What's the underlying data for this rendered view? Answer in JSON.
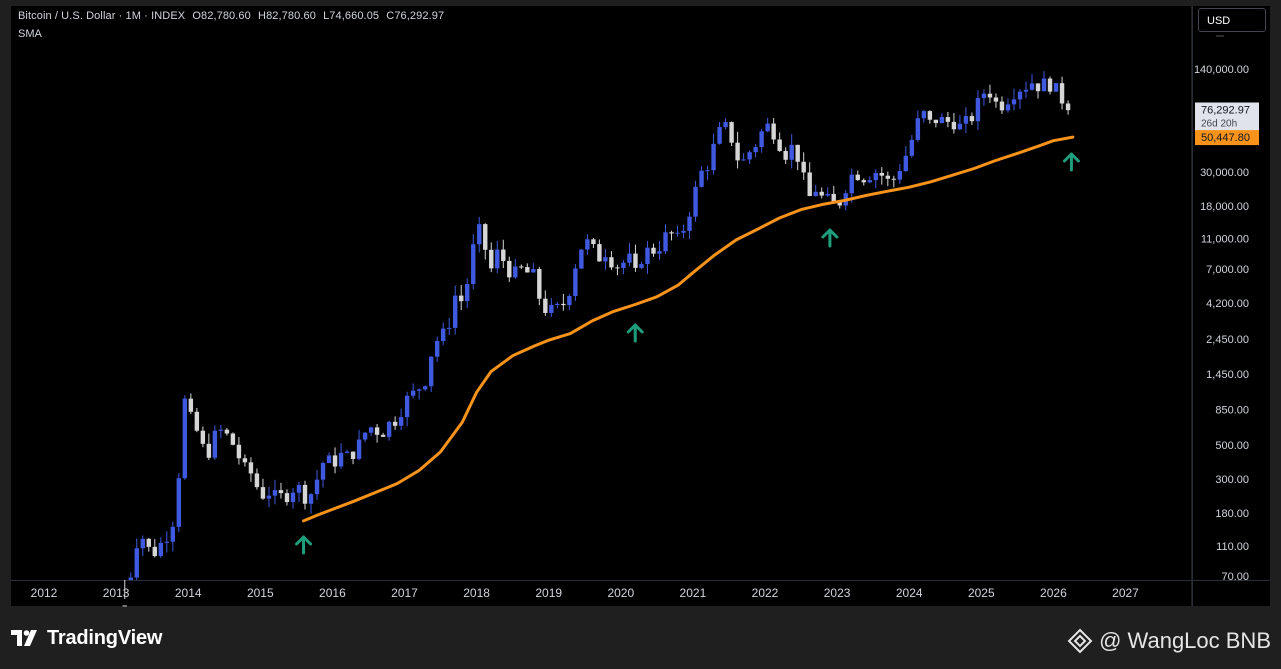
{
  "header": {
    "symbol": "Bitcoin / U.S. Dollar · 1M · INDEX",
    "open_key": "O",
    "open": "82,780.60",
    "high_key": "H",
    "high": "82,780.60",
    "low_key": "L",
    "low": "74,660.05",
    "close_key": "C",
    "close": "76,292.97",
    "indicator": "SMA"
  },
  "currency_button": "USD",
  "footer": {
    "brand": "TradingView",
    "watermark": "@ WangLoc BNB"
  },
  "colors": {
    "up_candle": "#3f59e0",
    "down_candle": "#d6d6d6",
    "sma_line": "#f7931a",
    "arrow": "#1f9e7e",
    "background": "#000000",
    "frame": "#1f1f1f"
  },
  "chart_data": {
    "type": "candlestick",
    "scale": "log",
    "price_labels": [
      {
        "label": "140,000.00",
        "value": 140000
      },
      {
        "label": "30,000.00",
        "value": 30000
      },
      {
        "label": "18,000.00",
        "value": 18000
      },
      {
        "label": "11,000.00",
        "value": 11000
      },
      {
        "label": "7,000.00",
        "value": 7000
      },
      {
        "label": "4,200.00",
        "value": 4200
      },
      {
        "label": "2,450.00",
        "value": 2450
      },
      {
        "label": "1,450.00",
        "value": 1450
      },
      {
        "label": "850.00",
        "value": 850
      },
      {
        "label": "500.00",
        "value": 500
      },
      {
        "label": "300.00",
        "value": 300
      },
      {
        "label": "180.00",
        "value": 180
      },
      {
        "label": "110.00",
        "value": 110
      },
      {
        "label": "70.00",
        "value": 70
      }
    ],
    "time_labels": [
      "2012",
      "2013",
      "2014",
      "2015",
      "2016",
      "2017",
      "2018",
      "2019",
      "2020",
      "2021",
      "2022",
      "2023",
      "2024",
      "2025",
      "2026",
      "2027"
    ],
    "last_price": {
      "label": "76,292.97",
      "countdown": "26d 20h",
      "value": 76292.97
    },
    "sma_price": {
      "label": "50,447.80",
      "value": 50447.8
    },
    "arrows_at": [
      2015.6,
      2020.2,
      2022.9,
      2026.25
    ],
    "price_path": [
      [
        2013.15,
        45
      ],
      [
        2013.25,
        110
      ],
      [
        2013.35,
        130
      ],
      [
        2013.5,
        95
      ],
      [
        2013.6,
        110
      ],
      [
        2013.75,
        140
      ],
      [
        2013.85,
        200
      ],
      [
        2013.92,
        1100
      ],
      [
        2014.0,
        800
      ],
      [
        2014.1,
        650
      ],
      [
        2014.2,
        480
      ],
      [
        2014.3,
        450
      ],
      [
        2014.4,
        630
      ],
      [
        2014.5,
        600
      ],
      [
        2014.6,
        530
      ],
      [
        2014.7,
        420
      ],
      [
        2014.8,
        340
      ],
      [
        2014.9,
        320
      ],
      [
        2015.0,
        230
      ],
      [
        2015.1,
        250
      ],
      [
        2015.2,
        230
      ],
      [
        2015.3,
        230
      ],
      [
        2015.4,
        240
      ],
      [
        2015.5,
        280
      ],
      [
        2015.6,
        230
      ],
      [
        2015.7,
        240
      ],
      [
        2015.8,
        310
      ],
      [
        2015.9,
        420
      ],
      [
        2016.0,
        370
      ],
      [
        2016.1,
        430
      ],
      [
        2016.2,
        420
      ],
      [
        2016.3,
        450
      ],
      [
        2016.4,
        530
      ],
      [
        2016.5,
        670
      ],
      [
        2016.6,
        620
      ],
      [
        2016.7,
        610
      ],
      [
        2016.8,
        700
      ],
      [
        2016.9,
        740
      ],
      [
        2017.0,
        960
      ],
      [
        2017.1,
        1050
      ],
      [
        2017.2,
        1180
      ],
      [
        2017.3,
        1350
      ],
      [
        2017.4,
        2300
      ],
      [
        2017.5,
        2500
      ],
      [
        2017.6,
        2850
      ],
      [
        2017.7,
        4700
      ],
      [
        2017.8,
        4300
      ],
      [
        2017.9,
        6400
      ],
      [
        2017.96,
        10000
      ],
      [
        2018.0,
        13800
      ],
      [
        2018.1,
        10200
      ],
      [
        2018.2,
        6900
      ],
      [
        2018.3,
        9200
      ],
      [
        2018.4,
        7500
      ],
      [
        2018.5,
        6300
      ],
      [
        2018.6,
        7000
      ],
      [
        2018.7,
        6600
      ],
      [
        2018.8,
        6300
      ],
      [
        2018.9,
        4000
      ],
      [
        2019.0,
        3700
      ],
      [
        2019.1,
        3800
      ],
      [
        2019.2,
        4100
      ],
      [
        2019.3,
        5300
      ],
      [
        2019.4,
        8600
      ],
      [
        2019.5,
        10800
      ],
      [
        2019.6,
        9600
      ],
      [
        2019.7,
        8300
      ],
      [
        2019.8,
        9200
      ],
      [
        2019.9,
        7500
      ],
      [
        2020.0,
        7200
      ],
      [
        2020.1,
        8600
      ],
      [
        2020.2,
        6400
      ],
      [
        2020.3,
        8600
      ],
      [
        2020.4,
        9400
      ],
      [
        2020.5,
        9100
      ],
      [
        2020.6,
        11300
      ],
      [
        2020.7,
        11700
      ],
      [
        2020.8,
        10800
      ],
      [
        2020.9,
        13800
      ],
      [
        2021.0,
        19700
      ],
      [
        2021.1,
        29000
      ],
      [
        2021.2,
        33000
      ],
      [
        2021.3,
        45000
      ],
      [
        2021.4,
        58800
      ],
      [
        2021.5,
        57700
      ],
      [
        2021.6,
        37300
      ],
      [
        2021.7,
        35000
      ],
      [
        2021.8,
        41500
      ],
      [
        2021.9,
        47100
      ],
      [
        2022.0,
        61300
      ],
      [
        2022.1,
        57000
      ],
      [
        2022.2,
        46300
      ],
      [
        2022.3,
        38500
      ],
      [
        2022.4,
        45500
      ],
      [
        2022.5,
        31800
      ],
      [
        2022.6,
        19900
      ],
      [
        2022.7,
        23300
      ],
      [
        2022.8,
        20000
      ],
      [
        2022.9,
        19400
      ],
      [
        2023.0,
        17200
      ],
      [
        2023.1,
        23100
      ],
      [
        2023.2,
        28500
      ],
      [
        2023.3,
        29200
      ],
      [
        2023.4,
        27200
      ],
      [
        2023.5,
        30500
      ],
      [
        2023.6,
        29200
      ],
      [
        2023.7,
        26000
      ],
      [
        2023.8,
        27000
      ],
      [
        2023.9,
        34500
      ],
      [
        2024.0,
        42300
      ],
      [
        2024.1,
        61100
      ],
      [
        2024.2,
        71300
      ],
      [
        2024.3,
        60600
      ],
      [
        2024.4,
        67500
      ],
      [
        2024.5,
        62700
      ],
      [
        2024.6,
        64600
      ],
      [
        2024.7,
        58900
      ],
      [
        2024.8,
        63300
      ],
      [
        2024.9,
        70200
      ],
      [
        2025.0,
        96400
      ],
      [
        2025.1,
        102400
      ],
      [
        2025.2,
        84300
      ],
      [
        2025.3,
        82500
      ],
      [
        2025.4,
        94200
      ],
      [
        2025.5,
        104600
      ],
      [
        2025.6,
        107100
      ],
      [
        2025.7,
        115700
      ],
      [
        2025.8,
        108200
      ],
      [
        2025.9,
        114000
      ],
      [
        2026.0,
        109500
      ],
      [
        2026.1,
        90400
      ],
      [
        2026.2,
        82780
      ],
      [
        2026.27,
        76292.97
      ]
    ],
    "sma_path": [
      [
        2015.6,
        160
      ],
      [
        2015.8,
        175
      ],
      [
        2016.0,
        190
      ],
      [
        2016.3,
        215
      ],
      [
        2016.6,
        245
      ],
      [
        2016.9,
        280
      ],
      [
        2017.2,
        340
      ],
      [
        2017.5,
        450
      ],
      [
        2017.8,
        700
      ],
      [
        2018.0,
        1100
      ],
      [
        2018.2,
        1500
      ],
      [
        2018.5,
        1900
      ],
      [
        2018.8,
        2200
      ],
      [
        2019.0,
        2400
      ],
      [
        2019.3,
        2650
      ],
      [
        2019.6,
        3200
      ],
      [
        2019.9,
        3700
      ],
      [
        2020.2,
        4100
      ],
      [
        2020.5,
        4600
      ],
      [
        2020.8,
        5500
      ],
      [
        2021.0,
        6600
      ],
      [
        2021.3,
        8600
      ],
      [
        2021.6,
        10800
      ],
      [
        2021.9,
        12700
      ],
      [
        2022.2,
        15000
      ],
      [
        2022.5,
        17000
      ],
      [
        2022.8,
        18400
      ],
      [
        2023.1,
        19500
      ],
      [
        2023.4,
        21000
      ],
      [
        2023.7,
        22400
      ],
      [
        2024.0,
        23800
      ],
      [
        2024.3,
        25800
      ],
      [
        2024.6,
        28500
      ],
      [
        2024.9,
        31500
      ],
      [
        2025.2,
        35500
      ],
      [
        2025.5,
        39500
      ],
      [
        2025.8,
        44200
      ],
      [
        2026.0,
        47800
      ],
      [
        2026.27,
        50447.8
      ]
    ]
  }
}
